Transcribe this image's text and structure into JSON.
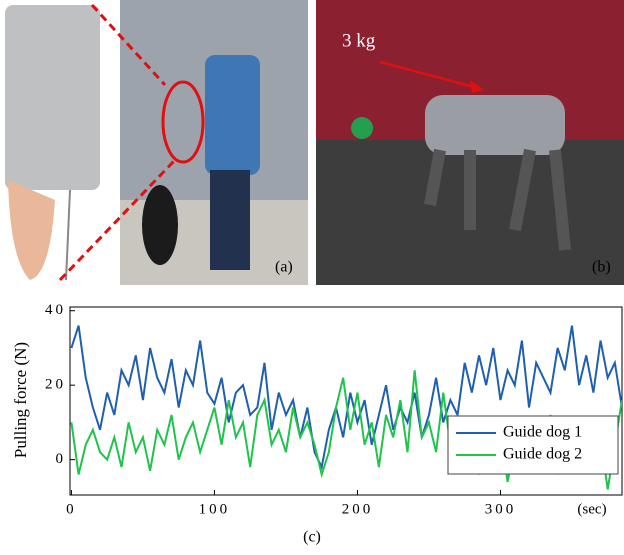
{
  "figure": {
    "annotation": "3 kg",
    "labels": [
      "(a)",
      "(b)",
      "(c)"
    ]
  },
  "chart_data": {
    "type": "line",
    "ylabel": "Pulling force (N)",
    "xlabel": "(sec)",
    "x": [
      0,
      5,
      10,
      15,
      20,
      25,
      30,
      35,
      40,
      45,
      50,
      55,
      60,
      65,
      70,
      75,
      80,
      85,
      90,
      95,
      100,
      105,
      110,
      115,
      120,
      125,
      130,
      135,
      140,
      145,
      150,
      155,
      160,
      165,
      170,
      175,
      180,
      185,
      190,
      195,
      200,
      205,
      210,
      215,
      220,
      225,
      230,
      235,
      240,
      245,
      250,
      255,
      260,
      265,
      270,
      275,
      280,
      285,
      290,
      295,
      300,
      305,
      310,
      315,
      320,
      325,
      330,
      335,
      340,
      345,
      350,
      355,
      360,
      365,
      370,
      375,
      380,
      385
    ],
    "series": [
      {
        "name": "Guide dog 1",
        "color": "#1f5fb0",
        "values": [
          30,
          36,
          22,
          14,
          8,
          18,
          12,
          24,
          20,
          28,
          16,
          30,
          22,
          18,
          27,
          14,
          24,
          20,
          32,
          18,
          15,
          22,
          10,
          18,
          20,
          12,
          14,
          26,
          8,
          18,
          12,
          16,
          6,
          14,
          2,
          -2,
          8,
          14,
          6,
          18,
          10,
          16,
          4,
          12,
          20,
          8,
          14,
          10,
          18,
          6,
          12,
          22,
          10,
          16,
          12,
          26,
          18,
          28,
          20,
          30,
          16,
          24,
          20,
          32,
          14,
          26,
          22,
          18,
          30,
          24,
          36,
          20,
          28,
          18,
          32,
          22,
          26,
          14
        ]
      },
      {
        "name": "Guide dog 2",
        "color": "#1fc44a",
        "values": [
          10,
          -4,
          4,
          8,
          2,
          0,
          6,
          -2,
          10,
          2,
          6,
          -3,
          8,
          4,
          12,
          0,
          6,
          10,
          2,
          8,
          14,
          4,
          16,
          6,
          10,
          -2,
          12,
          16,
          4,
          8,
          2,
          14,
          6,
          10,
          4,
          -4,
          2,
          14,
          22,
          8,
          18,
          4,
          10,
          -2,
          12,
          6,
          16,
          2,
          24,
          6,
          10,
          2,
          18,
          4,
          12,
          0,
          6,
          -4,
          10,
          2,
          8,
          -6,
          4,
          10,
          -2,
          6,
          2,
          12,
          -4,
          8,
          4,
          -2,
          10,
          2,
          6,
          -8,
          4,
          16
        ]
      }
    ],
    "xlim": [
      -1,
      385
    ],
    "ylim": [
      -9.5,
      41
    ],
    "xticks": [
      0,
      100,
      200,
      300
    ],
    "yticks": [
      0,
      20,
      40
    ]
  }
}
